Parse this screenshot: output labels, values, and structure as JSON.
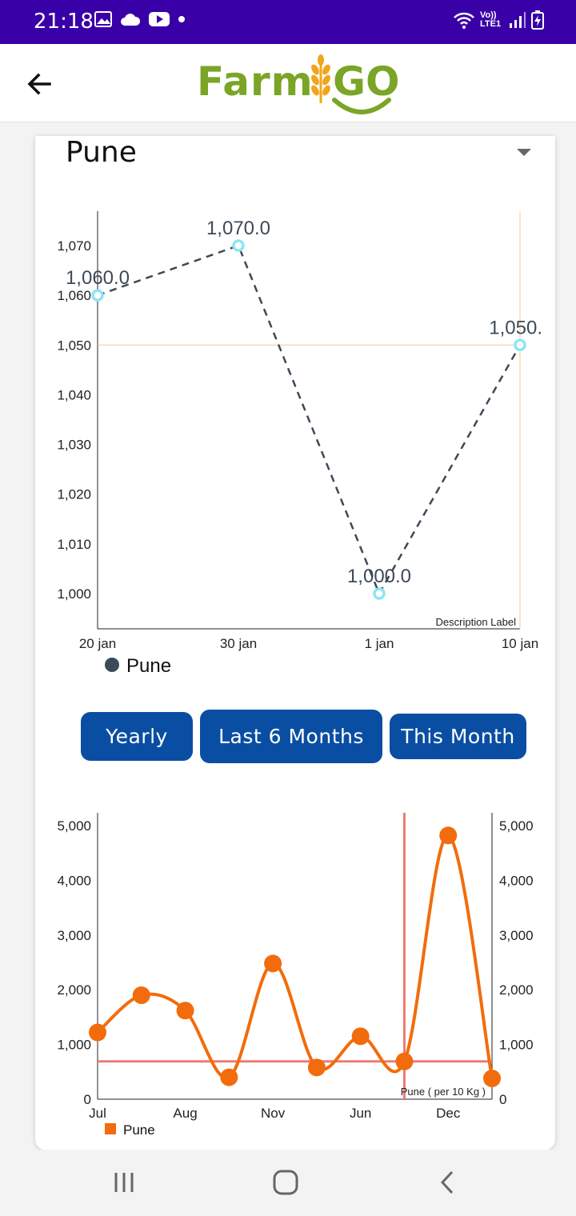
{
  "status_bar": {
    "time": "21:18",
    "network_label": "Vo)) LTE1"
  },
  "header": {
    "logo_left": "Farm",
    "logo_right": "GO"
  },
  "location": {
    "selected": "Pune"
  },
  "chart_data": [
    {
      "type": "line",
      "categories": [
        "20 jan",
        "30 jan",
        "1 jan",
        "10 jan"
      ],
      "series": [
        {
          "name": "Pune",
          "values": [
            1060,
            1070,
            1000,
            1050
          ]
        }
      ],
      "point_labels": [
        "1,060.0",
        "1,070.0",
        "1,000.0",
        "1,050."
      ],
      "y_ticks": [
        "1,000",
        "1,010",
        "1,020",
        "1,030",
        "1,040",
        "1,050",
        "1,060",
        "1,070"
      ],
      "ylim": [
        995,
        1078
      ],
      "limit_line": 1050,
      "description": "Description Label",
      "legend": "bottom-left",
      "colors": {
        "line": "#3d4a57",
        "marker": "#8fe4f5",
        "limit": "#f5c98a"
      }
    },
    {
      "type": "line",
      "x_labels": [
        "Jul",
        "Aug",
        "Nov",
        "Jun",
        "Dec"
      ],
      "series": [
        {
          "name": "Pune",
          "values": [
            1220,
            1900,
            1620,
            400,
            2480,
            580,
            1150,
            690,
            4820,
            380
          ]
        }
      ],
      "y_ticks": [
        "0",
        "1,000",
        "2,000",
        "3,000",
        "4,000",
        "5,000"
      ],
      "ylim": [
        0,
        5000
      ],
      "highlight_y": 690,
      "description": "Pune ( per 10 Kg )",
      "legend": "bottom-left",
      "colors": {
        "line": "#f26c0d",
        "marker": "#f26c0d",
        "highlight": "#ef7a72"
      }
    }
  ],
  "range_buttons": {
    "yearly": "Yearly",
    "six_months": "Last 6 Months",
    "this_month": "This Month"
  }
}
